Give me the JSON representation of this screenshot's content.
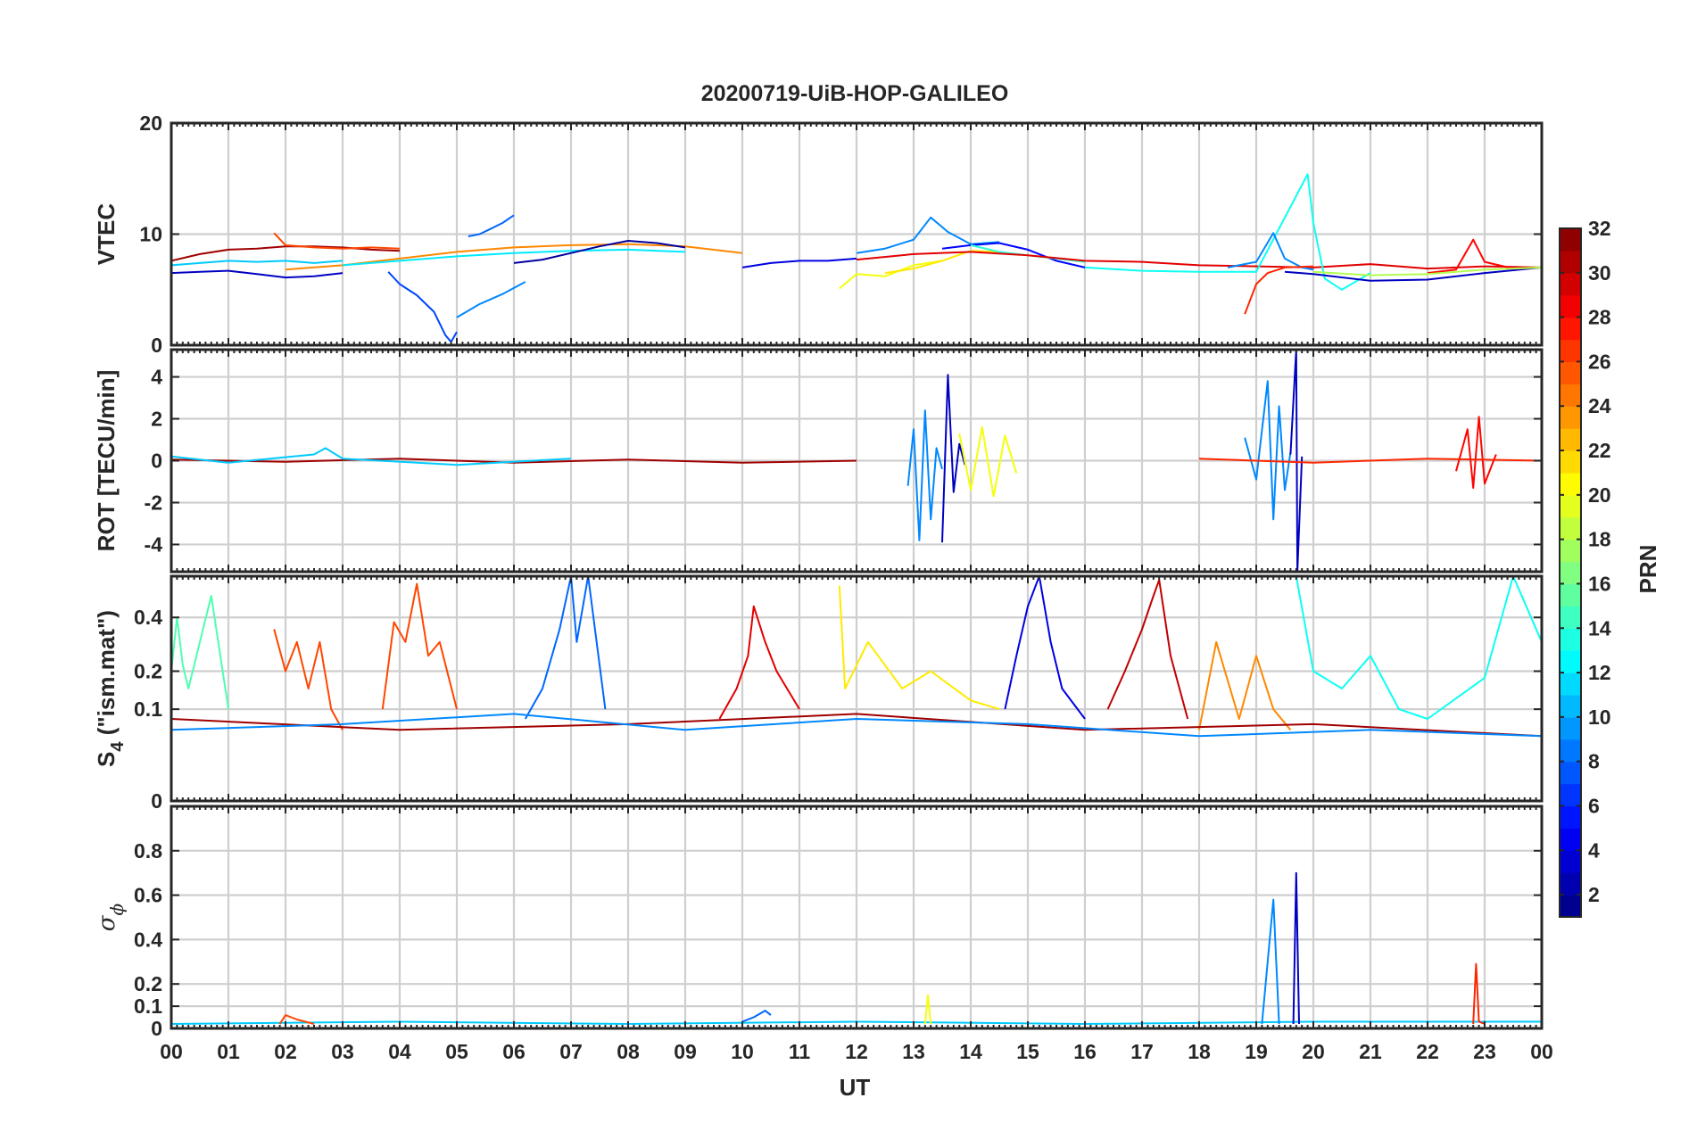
{
  "title": "20200719-UiB-HOP-GALILEO",
  "x_axis": {
    "label": "UT",
    "range": [
      0,
      24
    ],
    "tick_labels": [
      "00",
      "01",
      "02",
      "03",
      "04",
      "05",
      "06",
      "07",
      "08",
      "09",
      "10",
      "11",
      "12",
      "13",
      "14",
      "15",
      "16",
      "17",
      "18",
      "19",
      "20",
      "21",
      "22",
      "23",
      "00"
    ]
  },
  "colorbar": {
    "label": "PRN",
    "range": [
      1,
      32
    ],
    "tick_values": [
      2,
      4,
      6,
      8,
      10,
      12,
      14,
      16,
      18,
      20,
      22,
      24,
      26,
      28,
      30,
      32
    ],
    "colormap": "jet"
  },
  "panels": [
    {
      "id": "vtec",
      "ylabel": "VTEC",
      "ylim": [
        0,
        20
      ],
      "ticks": [
        0,
        10,
        20
      ],
      "tick_labels": [
        "0",
        "10",
        "20"
      ],
      "gridlines": [
        0,
        10,
        20
      ]
    },
    {
      "id": "rot",
      "ylabel": "ROT [TECU/min]",
      "ylim": [
        -5.3,
        5.3
      ],
      "ticks": [
        -4,
        -2,
        0,
        2,
        4
      ],
      "tick_labels": [
        "-4",
        "-2",
        "0",
        "2",
        "4"
      ],
      "gridlines": [
        -4,
        -2,
        0,
        2,
        4
      ]
    },
    {
      "id": "s4",
      "ylabel": "S4 (\"ism.mat\")",
      "ylabel_main": "S",
      "ylabel_sub": "4",
      "ylabel_rest": " (\"ism.mat\")",
      "ylim": [
        0,
        0.6
      ],
      "scale": "sqrt",
      "ticks": [
        0,
        0.1,
        0.2,
        0.4
      ],
      "tick_labels": [
        "0",
        "0.1",
        "0.2",
        "0.4"
      ],
      "gridlines": [
        0,
        0.1,
        0.2,
        0.4
      ]
    },
    {
      "id": "sigma",
      "ylabel": "σ ϕ",
      "ylabel_main": "σ",
      "ylabel_sub": "ϕ",
      "ylim": [
        0,
        1
      ],
      "ticks": [
        0,
        0.1,
        0.2,
        0.4,
        0.6,
        0.8
      ],
      "tick_labels": [
        "0",
        "0.1",
        "0.2",
        "0.4",
        "0.6",
        "0.8"
      ],
      "gridlines": [
        0,
        0.1,
        0.2,
        0.4,
        0.6,
        0.8
      ]
    }
  ],
  "chart_data": [
    {
      "type": "line",
      "panel": "vtec",
      "ylabel": "VTEC",
      "xlim": [
        0,
        24
      ],
      "ylim": [
        0,
        20
      ],
      "series": [
        {
          "prn": 31,
          "x": [
            0.0,
            0.5,
            1.0,
            1.5,
            2.0,
            2.5,
            3.0,
            3.5,
            4.0
          ],
          "y": [
            7.6,
            8.2,
            8.6,
            8.7,
            8.9,
            8.9,
            8.8,
            8.6,
            8.5
          ]
        },
        {
          "prn": 11,
          "x": [
            0.0,
            0.5,
            1.0,
            1.5,
            2.0,
            2.5,
            3.0
          ],
          "y": [
            7.2,
            7.4,
            7.6,
            7.5,
            7.6,
            7.4,
            7.6
          ]
        },
        {
          "prn": 3,
          "x": [
            0.0,
            0.5,
            1.0,
            1.5,
            2.0,
            2.5,
            3.0
          ],
          "y": [
            6.5,
            6.6,
            6.7,
            6.4,
            6.1,
            6.2,
            6.5
          ]
        },
        {
          "prn": 26,
          "x": [
            1.8,
            2.0,
            2.5,
            3.0,
            3.5,
            4.0
          ],
          "y": [
            10.1,
            9.0,
            8.8,
            8.7,
            8.8,
            8.7
          ]
        },
        {
          "prn": 7,
          "x": [
            3.8,
            4.0,
            4.3,
            4.6,
            4.8,
            4.9,
            5.0
          ],
          "y": [
            6.6,
            5.5,
            4.5,
            3.0,
            0.9,
            0.3,
            1.2
          ]
        },
        {
          "prn": 8,
          "x": [
            5.2,
            5.4,
            5.6,
            5.8,
            6.0
          ],
          "y": [
            9.8,
            10.0,
            10.5,
            11.0,
            11.7
          ]
        },
        {
          "prn": 9,
          "x": [
            5.0,
            5.4,
            5.8,
            6.2
          ],
          "y": [
            2.5,
            3.7,
            4.6,
            5.7
          ]
        },
        {
          "prn": 24,
          "x": [
            2.0,
            3.0,
            4.0,
            5.0,
            6.0,
            7.0,
            8.0,
            9.0,
            10.0
          ],
          "y": [
            6.8,
            7.2,
            7.8,
            8.4,
            8.8,
            9.0,
            9.1,
            8.9,
            8.3
          ]
        },
        {
          "prn": 12,
          "x": [
            3.0,
            4.0,
            5.0,
            6.0,
            7.0,
            8.0,
            9.0
          ],
          "y": [
            7.2,
            7.6,
            8.0,
            8.3,
            8.5,
            8.6,
            8.4
          ]
        },
        {
          "prn": 2,
          "x": [
            6.0,
            6.5,
            7.0,
            7.5,
            8.0,
            8.5,
            9.0
          ],
          "y": [
            7.4,
            7.7,
            8.3,
            8.9,
            9.4,
            9.2,
            8.8
          ]
        },
        {
          "prn": 4,
          "x": [
            10.0,
            10.5,
            11.0,
            11.5,
            12.0
          ],
          "y": [
            7.0,
            7.4,
            7.6,
            7.6,
            7.8
          ]
        },
        {
          "prn": 20,
          "x": [
            11.7,
            12.0,
            12.5,
            13.0,
            13.5
          ],
          "y": [
            5.1,
            6.4,
            6.2,
            7.2,
            7.6
          ]
        },
        {
          "prn": 21,
          "x": [
            12.5,
            13.0,
            13.5,
            14.0,
            14.5
          ],
          "y": [
            6.5,
            6.9,
            7.6,
            8.5,
            8.4
          ]
        },
        {
          "prn": 9,
          "x": [
            12.0,
            12.5,
            13.0,
            13.3,
            13.6,
            14.0,
            14.5
          ],
          "y": [
            8.3,
            8.7,
            9.5,
            11.5,
            10.2,
            9.1,
            9.3
          ]
        },
        {
          "prn": 5,
          "x": [
            13.5,
            14.0,
            14.5,
            15.0,
            15.5,
            16.0
          ],
          "y": [
            8.7,
            9.0,
            9.2,
            8.6,
            7.6,
            7.0
          ]
        },
        {
          "prn": 14,
          "x": [
            14.0,
            14.5,
            15.0,
            15.5,
            16.0
          ],
          "y": [
            9.0,
            8.4,
            8.1,
            7.8,
            7.5
          ]
        },
        {
          "prn": 29,
          "x": [
            12.0,
            13.0,
            14.0,
            15.0,
            16.0,
            17.0,
            18.0,
            19.0,
            20.0,
            21.0,
            22.0,
            23.0,
            24.0
          ],
          "y": [
            7.7,
            8.2,
            8.4,
            8.1,
            7.6,
            7.5,
            7.2,
            7.1,
            7.0,
            7.3,
            6.9,
            7.1,
            7.0
          ]
        },
        {
          "prn": 13,
          "x": [
            16.0,
            17.0,
            18.0,
            19.0,
            19.9,
            20.0,
            20.2,
            20.5,
            21.0
          ],
          "y": [
            7.0,
            6.7,
            6.6,
            6.6,
            15.4,
            11.0,
            6.0,
            5.0,
            6.5
          ]
        },
        {
          "prn": 9,
          "x": [
            18.5,
            19.0,
            19.3,
            19.5,
            19.8,
            20.0
          ],
          "y": [
            7.0,
            7.5,
            10.1,
            7.8,
            7.0,
            6.8
          ]
        },
        {
          "prn": 27,
          "x": [
            18.8,
            19.0,
            19.2,
            19.5,
            20.0
          ],
          "y": [
            2.8,
            5.5,
            6.5,
            7.0,
            7.1
          ]
        },
        {
          "prn": 3,
          "x": [
            19.5,
            20.0,
            21.0,
            22.0,
            23.0,
            24.0
          ],
          "y": [
            6.6,
            6.4,
            5.8,
            5.9,
            6.5,
            7.0
          ]
        },
        {
          "prn": 28,
          "x": [
            22.0,
            22.5,
            22.8,
            23.0,
            23.5,
            24.0
          ],
          "y": [
            6.5,
            6.8,
            9.5,
            7.5,
            6.9,
            7.0
          ]
        },
        {
          "prn": 18,
          "x": [
            20.0,
            21.0,
            22.0,
            23.0,
            24.0
          ],
          "y": [
            6.6,
            6.3,
            6.4,
            6.8,
            7.0
          ]
        }
      ]
    },
    {
      "type": "line",
      "panel": "rot",
      "ylabel": "ROT [TECU/min]",
      "xlim": [
        0,
        24
      ],
      "ylim": [
        -5.3,
        5.3
      ],
      "series": [
        {
          "prn": 31,
          "x": [
            0.0,
            2.0,
            4.0,
            6.0,
            8.0,
            10.0,
            12.0
          ],
          "y": [
            0.05,
            -0.05,
            0.1,
            -0.1,
            0.05,
            -0.1,
            0.0
          ]
        },
        {
          "prn": 11,
          "x": [
            0.0,
            1.0,
            2.5,
            2.7,
            3.0,
            5.0,
            7.0
          ],
          "y": [
            0.2,
            -0.1,
            0.3,
            0.6,
            0.1,
            -0.2,
            0.1
          ]
        },
        {
          "prn": 9,
          "x": [
            12.9,
            13.0,
            13.1,
            13.2,
            13.3,
            13.4,
            13.5
          ],
          "y": [
            -1.2,
            1.5,
            -3.8,
            2.4,
            -2.8,
            0.6,
            -0.4
          ]
        },
        {
          "prn": 3,
          "x": [
            13.5,
            13.6,
            13.7,
            13.8,
            13.9
          ],
          "y": [
            -3.9,
            4.1,
            -1.5,
            0.8,
            -0.2
          ]
        },
        {
          "prn": 20,
          "x": [
            13.8,
            14.0,
            14.2,
            14.4,
            14.6,
            14.8
          ],
          "y": [
            1.3,
            -1.4,
            1.6,
            -1.7,
            1.2,
            -0.6
          ]
        },
        {
          "prn": 9,
          "x": [
            18.8,
            19.0,
            19.2,
            19.3,
            19.4,
            19.5,
            19.6
          ],
          "y": [
            1.1,
            -0.9,
            3.8,
            -2.8,
            2.6,
            -1.4,
            0.4
          ]
        },
        {
          "prn": 3,
          "x": [
            19.6,
            19.7,
            19.72,
            19.8
          ],
          "y": [
            0.3,
            5.3,
            -5.3,
            0.2
          ]
        },
        {
          "prn": 28,
          "x": [
            22.5,
            22.7,
            22.8,
            22.9,
            23.0,
            23.2
          ],
          "y": [
            -0.5,
            1.5,
            -1.3,
            2.1,
            -1.1,
            0.3
          ]
        },
        {
          "prn": 27,
          "x": [
            18.0,
            20.0,
            22.0,
            24.0
          ],
          "y": [
            0.1,
            -0.1,
            0.1,
            0.0
          ]
        }
      ]
    },
    {
      "type": "line",
      "panel": "s4",
      "ylabel": "S4 (\"ism.mat\")",
      "xlim": [
        0,
        24
      ],
      "ylim": [
        0,
        0.6
      ],
      "series": [
        {
          "prn": 15,
          "x": [
            0.0,
            0.1,
            0.2,
            0.3,
            0.5,
            0.7,
            1.0
          ],
          "y": [
            0.2,
            0.4,
            0.22,
            0.15,
            0.3,
            0.5,
            0.1
          ]
        },
        {
          "prn": 26,
          "x": [
            1.8,
            2.0,
            2.2,
            2.4,
            2.6,
            2.8,
            3.0
          ],
          "y": [
            0.35,
            0.2,
            0.3,
            0.15,
            0.3,
            0.1,
            0.06
          ]
        },
        {
          "prn": 26,
          "x": [
            3.7,
            3.9,
            4.1,
            4.3,
            4.5,
            4.7,
            5.0
          ],
          "y": [
            0.1,
            0.38,
            0.3,
            0.56,
            0.25,
            0.3,
            0.1
          ]
        },
        {
          "prn": 8,
          "x": [
            6.2,
            6.5,
            6.8,
            7.0,
            7.1,
            7.3,
            7.6
          ],
          "y": [
            0.08,
            0.15,
            0.35,
            0.6,
            0.3,
            0.6,
            0.1
          ]
        },
        {
          "prn": 29,
          "x": [
            9.6,
            9.9,
            10.1,
            10.2,
            10.4,
            10.6,
            11.0
          ],
          "y": [
            0.08,
            0.15,
            0.25,
            0.45,
            0.3,
            0.2,
            0.1
          ]
        },
        {
          "prn": 21,
          "x": [
            11.7,
            11.8,
            12.2,
            12.8,
            13.3,
            14.0,
            14.5
          ],
          "y": [
            0.55,
            0.15,
            0.3,
            0.15,
            0.2,
            0.12,
            0.1
          ]
        },
        {
          "prn": 4,
          "x": [
            14.6,
            14.8,
            15.0,
            15.2,
            15.4,
            15.6,
            16.0
          ],
          "y": [
            0.1,
            0.25,
            0.45,
            0.6,
            0.3,
            0.15,
            0.08
          ]
        },
        {
          "prn": 30,
          "x": [
            16.4,
            16.7,
            17.0,
            17.2,
            17.3,
            17.5,
            17.8
          ],
          "y": [
            0.1,
            0.2,
            0.35,
            0.5,
            0.58,
            0.25,
            0.08
          ]
        },
        {
          "prn": 24,
          "x": [
            18.0,
            18.3,
            18.7,
            19.0,
            19.3,
            19.6
          ],
          "y": [
            0.06,
            0.3,
            0.08,
            0.25,
            0.1,
            0.06
          ]
        },
        {
          "prn": 13,
          "x": [
            19.7,
            20.0,
            20.5,
            21.0,
            21.5,
            22.0,
            23.0,
            23.5,
            24.0
          ],
          "y": [
            0.6,
            0.2,
            0.15,
            0.25,
            0.1,
            0.08,
            0.18,
            0.6,
            0.3
          ]
        },
        {
          "prn": 31,
          "x": [
            0.0,
            4.0,
            8.0,
            12.0,
            16.0,
            20.0,
            24.0
          ],
          "y": [
            0.08,
            0.06,
            0.07,
            0.09,
            0.06,
            0.07,
            0.05
          ]
        },
        {
          "prn": 9,
          "x": [
            0.0,
            3.0,
            6.0,
            9.0,
            12.0,
            15.0,
            18.0,
            21.0,
            24.0
          ],
          "y": [
            0.06,
            0.07,
            0.09,
            0.06,
            0.08,
            0.07,
            0.05,
            0.06,
            0.05
          ]
        }
      ]
    },
    {
      "type": "line",
      "panel": "sigma",
      "ylabel": "σ ϕ",
      "xlim": [
        0,
        24
      ],
      "ylim": [
        0,
        1
      ],
      "series": [
        {
          "prn": 11,
          "x": [
            0.0,
            4.0,
            8.0,
            12.0,
            16.0,
            20.0,
            24.0
          ],
          "y": [
            0.02,
            0.03,
            0.02,
            0.03,
            0.02,
            0.03,
            0.03
          ]
        },
        {
          "prn": 26,
          "x": [
            1.9,
            2.0,
            2.2,
            2.5
          ],
          "y": [
            0.02,
            0.06,
            0.04,
            0.02
          ]
        },
        {
          "prn": 8,
          "x": [
            10.0,
            10.2,
            10.4,
            10.5
          ],
          "y": [
            0.03,
            0.05,
            0.08,
            0.06
          ]
        },
        {
          "prn": 20,
          "x": [
            13.2,
            13.25,
            13.3
          ],
          "y": [
            0.02,
            0.15,
            0.02
          ]
        },
        {
          "prn": 9,
          "x": [
            19.1,
            19.2,
            19.3,
            19.4
          ],
          "y": [
            0.02,
            0.3,
            0.58,
            0.02
          ]
        },
        {
          "prn": 3,
          "x": [
            19.65,
            19.7,
            19.75
          ],
          "y": [
            0.02,
            0.7,
            0.02
          ]
        },
        {
          "prn": 27,
          "x": [
            22.8,
            22.85,
            22.9,
            23.0
          ],
          "y": [
            0.02,
            0.29,
            0.03,
            0.02
          ]
        }
      ]
    }
  ]
}
